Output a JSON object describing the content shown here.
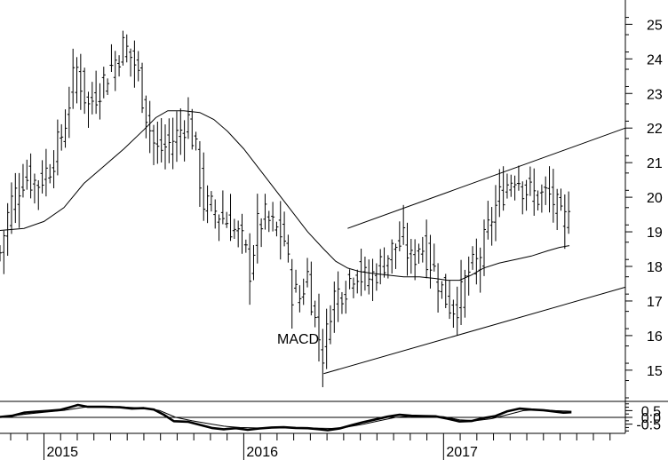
{
  "chart_data": [
    {
      "type": "ohlc",
      "title": "",
      "xlabel": "",
      "ylabel": "",
      "ylim": [
        14.2,
        25.6
      ],
      "yticks": [
        15,
        16,
        17,
        18,
        19,
        20,
        21,
        22,
        23,
        24,
        25
      ],
      "grid": false,
      "price_path": [
        [
          2014.78,
          18.4
        ],
        [
          2014.83,
          19.8
        ],
        [
          2014.9,
          20.6
        ],
        [
          2014.97,
          20.4
        ],
        [
          2015.04,
          21.0
        ],
        [
          2015.1,
          22.0
        ],
        [
          2015.16,
          23.8
        ],
        [
          2015.22,
          22.6
        ],
        [
          2015.28,
          23.2
        ],
        [
          2015.34,
          23.8
        ],
        [
          2015.4,
          24.4
        ],
        [
          2015.46,
          23.8
        ],
        [
          2015.52,
          22.2
        ],
        [
          2015.56,
          21.3
        ],
        [
          2015.62,
          21.5
        ],
        [
          2015.68,
          21.9
        ],
        [
          2015.72,
          22.3
        ],
        [
          2015.76,
          21.3
        ],
        [
          2015.8,
          19.8
        ],
        [
          2015.86,
          19.6
        ],
        [
          2015.92,
          19.3
        ],
        [
          2015.97,
          18.9
        ],
        [
          2016.0,
          18.6
        ],
        [
          2016.03,
          17.9
        ],
        [
          2016.07,
          19.2
        ],
        [
          2016.11,
          19.4
        ],
        [
          2016.15,
          19.1
        ],
        [
          2016.2,
          18.9
        ],
        [
          2016.24,
          17.3
        ],
        [
          2016.28,
          17.1
        ],
        [
          2016.32,
          17.8
        ],
        [
          2016.36,
          16.3
        ],
        [
          2016.4,
          15.4
        ],
        [
          2016.44,
          17.1
        ],
        [
          2016.48,
          17.3
        ],
        [
          2016.52,
          17.5
        ],
        [
          2016.56,
          18.0
        ],
        [
          2016.6,
          17.6
        ],
        [
          2016.64,
          17.7
        ],
        [
          2016.68,
          18.0
        ],
        [
          2016.72,
          18.3
        ],
        [
          2016.76,
          18.6
        ],
        [
          2016.8,
          18.7
        ],
        [
          2016.84,
          18.1
        ],
        [
          2016.88,
          18.7
        ],
        [
          2016.92,
          18.3
        ],
        [
          2016.96,
          17.8
        ],
        [
          2017.0,
          17.2
        ],
        [
          2017.04,
          16.8
        ],
        [
          2017.08,
          17.0
        ],
        [
          2017.12,
          17.8
        ],
        [
          2017.16,
          18.0
        ],
        [
          2017.2,
          18.6
        ],
        [
          2017.24,
          19.4
        ],
        [
          2017.28,
          20.0
        ],
        [
          2017.32,
          20.4
        ],
        [
          2017.36,
          20.7
        ],
        [
          2017.4,
          20.3
        ],
        [
          2017.44,
          20.1
        ],
        [
          2017.48,
          20.0
        ],
        [
          2017.52,
          20.1
        ],
        [
          2017.56,
          19.8
        ],
        [
          2017.6,
          19.1
        ],
        [
          2017.64,
          20.4
        ]
      ],
      "moving_average": [
        [
          2014.7,
          19.0
        ],
        [
          2014.8,
          19.05
        ],
        [
          2014.9,
          19.1
        ],
        [
          2015.0,
          19.3
        ],
        [
          2015.1,
          19.7
        ],
        [
          2015.2,
          20.4
        ],
        [
          2015.3,
          20.9
        ],
        [
          2015.4,
          21.4
        ],
        [
          2015.5,
          21.95
        ],
        [
          2015.56,
          22.3
        ],
        [
          2015.62,
          22.5
        ],
        [
          2015.7,
          22.5
        ],
        [
          2015.78,
          22.45
        ],
        [
          2015.85,
          22.25
        ],
        [
          2015.92,
          21.9
        ],
        [
          2016.0,
          21.4
        ],
        [
          2016.08,
          20.8
        ],
        [
          2016.16,
          20.2
        ],
        [
          2016.24,
          19.6
        ],
        [
          2016.32,
          19.0
        ],
        [
          2016.4,
          18.5
        ],
        [
          2016.46,
          18.15
        ],
        [
          2016.52,
          17.95
        ],
        [
          2016.58,
          17.85
        ],
        [
          2016.64,
          17.8
        ],
        [
          2016.72,
          17.75
        ],
        [
          2016.8,
          17.7
        ],
        [
          2016.88,
          17.7
        ],
        [
          2016.96,
          17.65
        ],
        [
          2017.02,
          17.6
        ],
        [
          2017.08,
          17.6
        ],
        [
          2017.14,
          17.75
        ],
        [
          2017.2,
          17.95
        ],
        [
          2017.28,
          18.1
        ],
        [
          2017.36,
          18.2
        ],
        [
          2017.44,
          18.3
        ],
        [
          2017.52,
          18.45
        ],
        [
          2017.58,
          18.55
        ],
        [
          2017.63,
          18.6
        ]
      ],
      "trend_lines": [
        {
          "x": [
            2016.4,
            2017.91
          ],
          "y": [
            14.9,
            17.4
          ]
        },
        {
          "x": [
            2016.52,
            2017.91
          ],
          "y": [
            19.1,
            22.0
          ]
        }
      ]
    },
    {
      "type": "line",
      "annotation": "MACD",
      "xlabel": "",
      "ylabel": "",
      "ylim": [
        -1.05,
        1.05
      ],
      "yticks": [
        -0.5,
        0.0,
        0.5
      ],
      "ytick_labels": [
        "-0.5",
        "0.0",
        "0.5"
      ],
      "zero_line": 0.0,
      "x_tick_labels": [
        "2015",
        "2016",
        "2017"
      ],
      "x_tick_positions": [
        2015.0,
        2016.0,
        2017.0
      ],
      "xlim": [
        2014.78,
        2017.91
      ],
      "series": [
        {
          "style": "thick",
          "points": [
            [
              2014.78,
              0.03
            ],
            [
              2014.84,
              0.12
            ],
            [
              2014.9,
              0.35
            ],
            [
              2014.96,
              0.42
            ],
            [
              2015.02,
              0.48
            ],
            [
              2015.08,
              0.55
            ],
            [
              2015.13,
              0.75
            ],
            [
              2015.17,
              0.92
            ],
            [
              2015.22,
              0.78
            ],
            [
              2015.3,
              0.78
            ],
            [
              2015.38,
              0.75
            ],
            [
              2015.44,
              0.65
            ],
            [
              2015.5,
              0.68
            ],
            [
              2015.55,
              0.58
            ],
            [
              2015.6,
              0.2
            ],
            [
              2015.65,
              -0.28
            ],
            [
              2015.72,
              -0.32
            ],
            [
              2015.78,
              -0.55
            ],
            [
              2015.84,
              -0.78
            ],
            [
              2015.9,
              -0.88
            ],
            [
              2015.96,
              -0.8
            ],
            [
              2016.02,
              -0.92
            ],
            [
              2016.08,
              -0.82
            ],
            [
              2016.14,
              -0.75
            ],
            [
              2016.2,
              -0.73
            ],
            [
              2016.26,
              -0.78
            ],
            [
              2016.32,
              -0.8
            ],
            [
              2016.38,
              -0.88
            ],
            [
              2016.42,
              -0.95
            ],
            [
              2016.48,
              -0.82
            ],
            [
              2016.54,
              -0.58
            ],
            [
              2016.6,
              -0.35
            ],
            [
              2016.66,
              -0.15
            ],
            [
              2016.72,
              0.05
            ],
            [
              2016.78,
              0.2
            ],
            [
              2016.84,
              0.12
            ],
            [
              2016.9,
              0.1
            ],
            [
              2016.96,
              0.08
            ],
            [
              2017.02,
              -0.1
            ],
            [
              2017.08,
              -0.3
            ],
            [
              2017.14,
              -0.27
            ],
            [
              2017.2,
              -0.05
            ],
            [
              2017.26,
              0.1
            ],
            [
              2017.32,
              0.45
            ],
            [
              2017.38,
              0.65
            ],
            [
              2017.44,
              0.58
            ],
            [
              2017.5,
              0.53
            ],
            [
              2017.56,
              0.42
            ],
            [
              2017.6,
              0.35
            ],
            [
              2017.64,
              0.38
            ]
          ]
        },
        {
          "style": "thin",
          "points": [
            [
              2014.78,
              0.0
            ],
            [
              2014.9,
              0.22
            ],
            [
              2015.0,
              0.38
            ],
            [
              2015.1,
              0.52
            ],
            [
              2015.2,
              0.75
            ],
            [
              2015.28,
              0.8
            ],
            [
              2015.4,
              0.76
            ],
            [
              2015.52,
              0.66
            ],
            [
              2015.58,
              0.5
            ],
            [
              2015.66,
              0.0
            ],
            [
              2015.74,
              -0.25
            ],
            [
              2015.82,
              -0.45
            ],
            [
              2015.9,
              -0.65
            ],
            [
              2015.98,
              -0.75
            ],
            [
              2016.06,
              -0.78
            ],
            [
              2016.14,
              -0.78
            ],
            [
              2016.22,
              -0.76
            ],
            [
              2016.3,
              -0.76
            ],
            [
              2016.38,
              -0.8
            ],
            [
              2016.44,
              -0.82
            ],
            [
              2016.52,
              -0.7
            ],
            [
              2016.6,
              -0.5
            ],
            [
              2016.68,
              -0.25
            ],
            [
              2016.76,
              0.0
            ],
            [
              2016.84,
              0.1
            ],
            [
              2016.92,
              0.12
            ],
            [
              2017.0,
              0.05
            ],
            [
              2017.08,
              -0.18
            ],
            [
              2017.16,
              -0.25
            ],
            [
              2017.24,
              -0.1
            ],
            [
              2017.32,
              0.2
            ],
            [
              2017.4,
              0.5
            ],
            [
              2017.48,
              0.57
            ],
            [
              2017.56,
              0.5
            ],
            [
              2017.64,
              0.45
            ]
          ]
        }
      ]
    }
  ]
}
